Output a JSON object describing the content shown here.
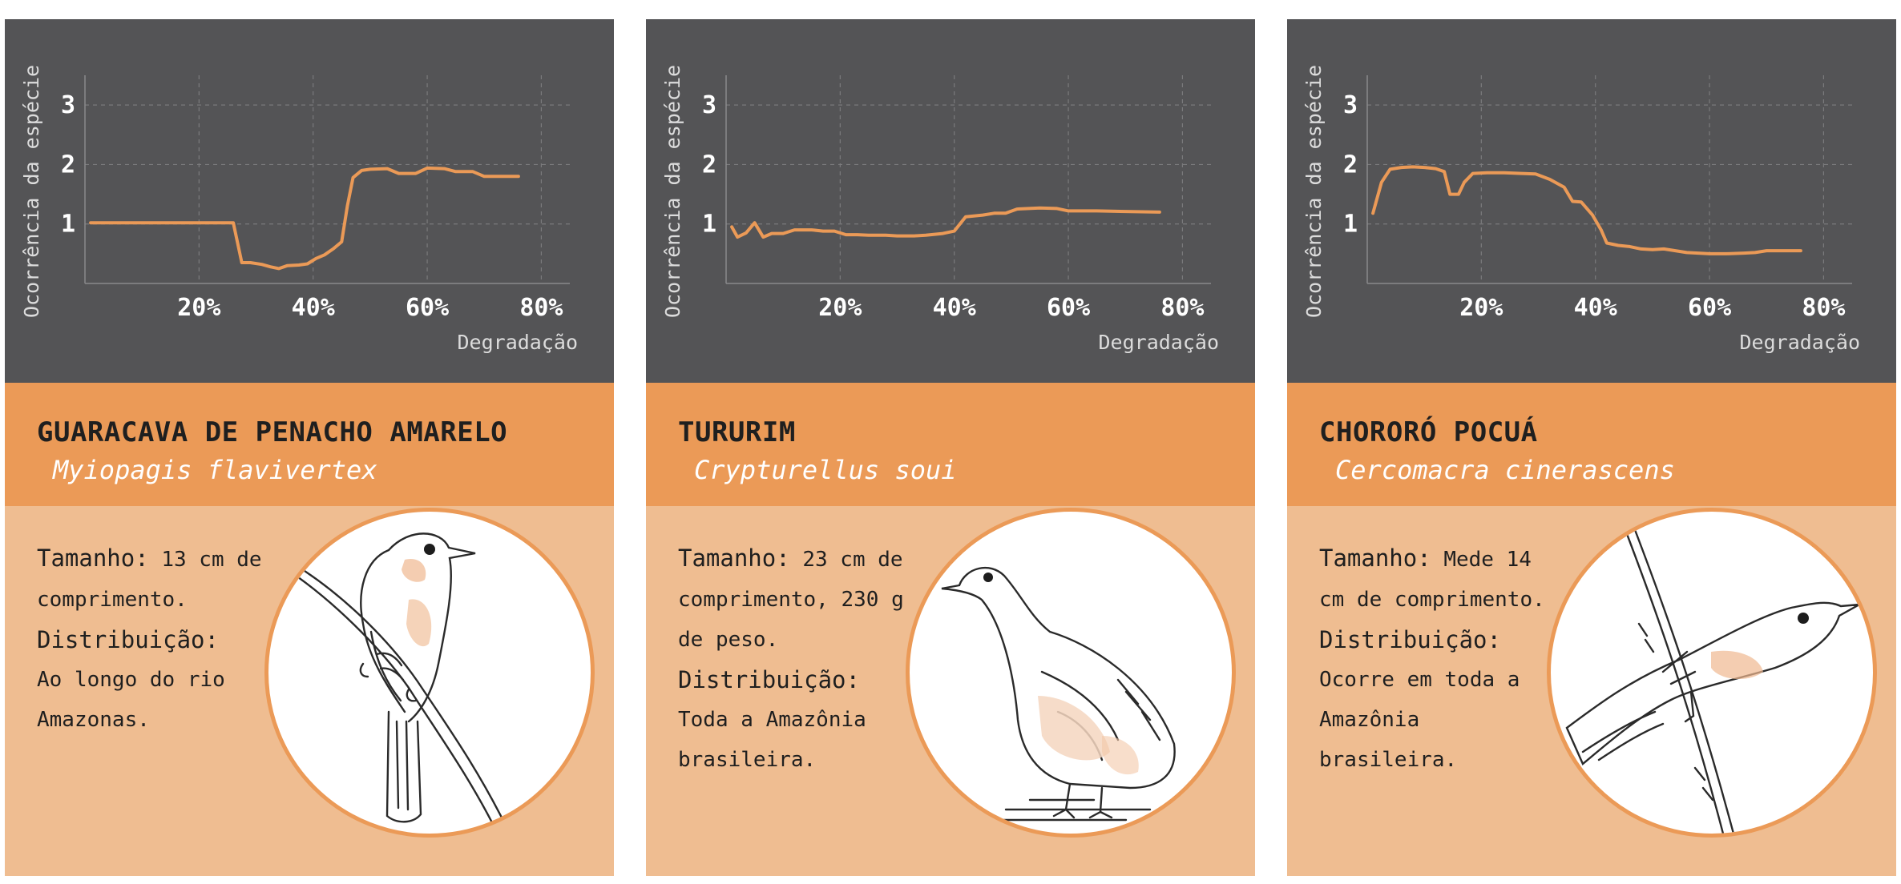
{
  "chart_data": [
    {
      "type": "line",
      "xlabel": "Degradação",
      "ylabel": "Ocorrência da espécie",
      "xlim": [
        0,
        0.85
      ],
      "ylim": [
        0,
        3.5
      ],
      "xticks": [
        {
          "v": 0.2,
          "label": "20%"
        },
        {
          "v": 0.4,
          "label": "40%"
        },
        {
          "v": 0.6,
          "label": "60%"
        },
        {
          "v": 0.8,
          "label": "80%"
        }
      ],
      "yticks": [
        {
          "v": 1,
          "label": "1"
        },
        {
          "v": 2,
          "label": "2"
        },
        {
          "v": 3,
          "label": "3"
        }
      ],
      "grid": true,
      "color": "#eb9a57",
      "points": [
        [
          0.01,
          1.02
        ],
        [
          0.05,
          1.02
        ],
        [
          0.1,
          1.02
        ],
        [
          0.15,
          1.02
        ],
        [
          0.2,
          1.02
        ],
        [
          0.26,
          1.02
        ],
        [
          0.275,
          0.35
        ],
        [
          0.29,
          0.35
        ],
        [
          0.31,
          0.32
        ],
        [
          0.325,
          0.28
        ],
        [
          0.34,
          0.25
        ],
        [
          0.355,
          0.3
        ],
        [
          0.375,
          0.31
        ],
        [
          0.39,
          0.33
        ],
        [
          0.405,
          0.42
        ],
        [
          0.42,
          0.48
        ],
        [
          0.435,
          0.58
        ],
        [
          0.45,
          0.7
        ],
        [
          0.46,
          1.3
        ],
        [
          0.47,
          1.78
        ],
        [
          0.485,
          1.9
        ],
        [
          0.5,
          1.92
        ],
        [
          0.53,
          1.93
        ],
        [
          0.55,
          1.85
        ],
        [
          0.58,
          1.85
        ],
        [
          0.6,
          1.94
        ],
        [
          0.63,
          1.93
        ],
        [
          0.65,
          1.88
        ],
        [
          0.68,
          1.88
        ],
        [
          0.7,
          1.8
        ],
        [
          0.72,
          1.8
        ],
        [
          0.76,
          1.8
        ]
      ]
    },
    {
      "type": "line",
      "xlabel": "Degradação",
      "ylabel": "Ocorrência da espécie",
      "xlim": [
        0,
        0.85
      ],
      "ylim": [
        0,
        3.5
      ],
      "xticks": [
        {
          "v": 0.2,
          "label": "20%"
        },
        {
          "v": 0.4,
          "label": "40%"
        },
        {
          "v": 0.6,
          "label": "60%"
        },
        {
          "v": 0.8,
          "label": "80%"
        }
      ],
      "yticks": [
        {
          "v": 1,
          "label": "1"
        },
        {
          "v": 2,
          "label": "2"
        },
        {
          "v": 3,
          "label": "3"
        }
      ],
      "grid": true,
      "color": "#eb9a57",
      "points": [
        [
          0.01,
          0.95
        ],
        [
          0.02,
          0.78
        ],
        [
          0.035,
          0.85
        ],
        [
          0.05,
          1.02
        ],
        [
          0.065,
          0.78
        ],
        [
          0.08,
          0.84
        ],
        [
          0.1,
          0.84
        ],
        [
          0.12,
          0.9
        ],
        [
          0.15,
          0.9
        ],
        [
          0.17,
          0.88
        ],
        [
          0.19,
          0.88
        ],
        [
          0.21,
          0.82
        ],
        [
          0.23,
          0.82
        ],
        [
          0.25,
          0.81
        ],
        [
          0.28,
          0.81
        ],
        [
          0.3,
          0.8
        ],
        [
          0.33,
          0.8
        ],
        [
          0.35,
          0.81
        ],
        [
          0.38,
          0.84
        ],
        [
          0.4,
          0.88
        ],
        [
          0.42,
          1.12
        ],
        [
          0.45,
          1.15
        ],
        [
          0.47,
          1.18
        ],
        [
          0.49,
          1.18
        ],
        [
          0.51,
          1.25
        ],
        [
          0.55,
          1.27
        ],
        [
          0.58,
          1.26
        ],
        [
          0.6,
          1.22
        ],
        [
          0.65,
          1.22
        ],
        [
          0.7,
          1.21
        ],
        [
          0.76,
          1.2
        ]
      ]
    },
    {
      "type": "line",
      "xlabel": "Degradação",
      "ylabel": "Ocorrência da espécie",
      "xlim": [
        0,
        0.85
      ],
      "ylim": [
        0,
        3.5
      ],
      "xticks": [
        {
          "v": 0.2,
          "label": "20%"
        },
        {
          "v": 0.4,
          "label": "40%"
        },
        {
          "v": 0.6,
          "label": "60%"
        },
        {
          "v": 0.8,
          "label": "80%"
        }
      ],
      "yticks": [
        {
          "v": 1,
          "label": "1"
        },
        {
          "v": 2,
          "label": "2"
        },
        {
          "v": 3,
          "label": "3"
        }
      ],
      "grid": true,
      "color": "#eb9a57",
      "points": [
        [
          0.01,
          1.18
        ],
        [
          0.025,
          1.7
        ],
        [
          0.04,
          1.92
        ],
        [
          0.06,
          1.95
        ],
        [
          0.08,
          1.96
        ],
        [
          0.1,
          1.95
        ],
        [
          0.12,
          1.93
        ],
        [
          0.135,
          1.88
        ],
        [
          0.145,
          1.5
        ],
        [
          0.16,
          1.5
        ],
        [
          0.17,
          1.7
        ],
        [
          0.185,
          1.85
        ],
        [
          0.21,
          1.86
        ],
        [
          0.24,
          1.86
        ],
        [
          0.27,
          1.85
        ],
        [
          0.295,
          1.84
        ],
        [
          0.32,
          1.75
        ],
        [
          0.345,
          1.62
        ],
        [
          0.36,
          1.38
        ],
        [
          0.375,
          1.37
        ],
        [
          0.395,
          1.15
        ],
        [
          0.41,
          0.9
        ],
        [
          0.42,
          0.68
        ],
        [
          0.44,
          0.64
        ],
        [
          0.46,
          0.62
        ],
        [
          0.48,
          0.58
        ],
        [
          0.5,
          0.57
        ],
        [
          0.52,
          0.58
        ],
        [
          0.54,
          0.55
        ],
        [
          0.56,
          0.52
        ],
        [
          0.6,
          0.5
        ],
        [
          0.63,
          0.5
        ],
        [
          0.66,
          0.51
        ],
        [
          0.68,
          0.52
        ],
        [
          0.7,
          0.55
        ],
        [
          0.72,
          0.55
        ],
        [
          0.76,
          0.55
        ]
      ]
    }
  ],
  "cards": [
    {
      "common_name": "GUARACAVA DE PENACHO AMARELO",
      "scientific_name": "Myiopagis flavivertex",
      "size_label": "Tamanho:",
      "size_value": " 13 cm de comprimento.",
      "dist_label": "Distribuição:",
      "dist_value": "Ao longo do rio Amazonas.",
      "illustration": "perched-flycatcher-drawing"
    },
    {
      "common_name": "TURURIM",
      "scientific_name": "Crypturellus soui",
      "size_label": "Tamanho:",
      "size_value": " 23 cm de comprimento, 230 g de peso.",
      "dist_label": "Distribuição:",
      "dist_value": "Toda a Amazônia brasileira.",
      "illustration": "tinamou-drawing"
    },
    {
      "common_name": "CHORORÓ POCUÁ",
      "scientific_name": "Cercomacra cinerascens",
      "size_label": "Tamanho:",
      "size_value": " Mede 14 cm de comprimento.",
      "dist_label": "Distribuição:",
      "dist_value": "Ocorre em toda a Amazônia brasileira.",
      "illustration": "antbird-on-branch-drawing"
    }
  ]
}
